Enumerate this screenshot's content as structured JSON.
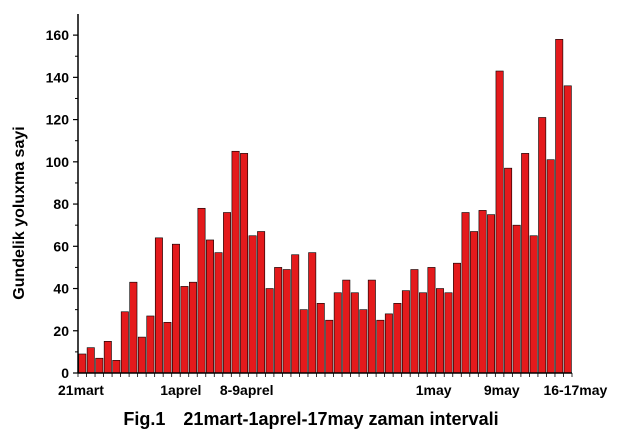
{
  "chart_data": {
    "type": "bar",
    "ylabel": "Gundelik yoluxma sayi",
    "ylim": [
      0,
      170
    ],
    "yticks": [
      0,
      20,
      40,
      60,
      80,
      100,
      120,
      140,
      160
    ],
    "x_labels": [
      {
        "text": "21mart",
        "index": 0
      },
      {
        "text": "1aprel",
        "index": 12
      },
      {
        "text": "8-9aprel",
        "index": 19
      },
      {
        "text": "1may",
        "index": 42
      },
      {
        "text": "9may",
        "index": 50
      },
      {
        "text": "16-17may",
        "index": 57
      }
    ],
    "values": [
      9,
      12,
      7,
      15,
      6,
      29,
      43,
      17,
      27,
      64,
      24,
      61,
      41,
      43,
      78,
      63,
      57,
      76,
      105,
      104,
      65,
      67,
      40,
      50,
      49,
      56,
      30,
      57,
      33,
      25,
      38,
      44,
      38,
      30,
      44,
      25,
      28,
      33,
      39,
      49,
      38,
      50,
      40,
      38,
      52,
      76,
      67,
      77,
      75,
      143,
      97,
      70,
      104,
      65,
      121,
      101,
      158,
      136
    ],
    "bar_color": "#e41a1c",
    "bar_edge_color": "#000000",
    "grid": false,
    "legend": false
  },
  "caption": {
    "fig": "Fig.1",
    "title": "21mart-1aprel-17may zaman intervali"
  }
}
